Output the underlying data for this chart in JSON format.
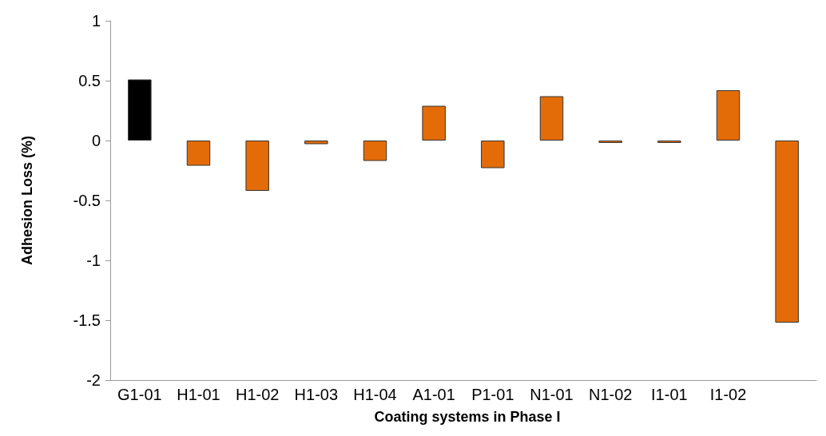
{
  "chart_data": {
    "type": "bar",
    "xlabel": "Coating systems in Phase I",
    "ylabel": "Adhesion Loss (%)",
    "categories": [
      "G1-01",
      "H1-01",
      "H1-02",
      "H1-03",
      "H1-04",
      "A1-01",
      "P1-01",
      "N1-01",
      "N1-02",
      "I1-01",
      "I1-02",
      null
    ],
    "values": [
      0.51,
      -0.21,
      -0.42,
      -0.03,
      -0.17,
      0.29,
      -0.23,
      0.37,
      -0.02,
      -0.02,
      0.42,
      -1.52
    ],
    "colors": [
      "#000000",
      "#e36c09",
      "#e36c09",
      "#e36c09",
      "#e36c09",
      "#e36c09",
      "#e36c09",
      "#e36c09",
      "#e36c09",
      "#e36c09",
      "#e36c09",
      "#e36c09"
    ],
    "ylim": [
      -2,
      1
    ],
    "yticks": [
      -2,
      -1.5,
      -1,
      -0.5,
      0,
      0.5,
      1
    ]
  }
}
